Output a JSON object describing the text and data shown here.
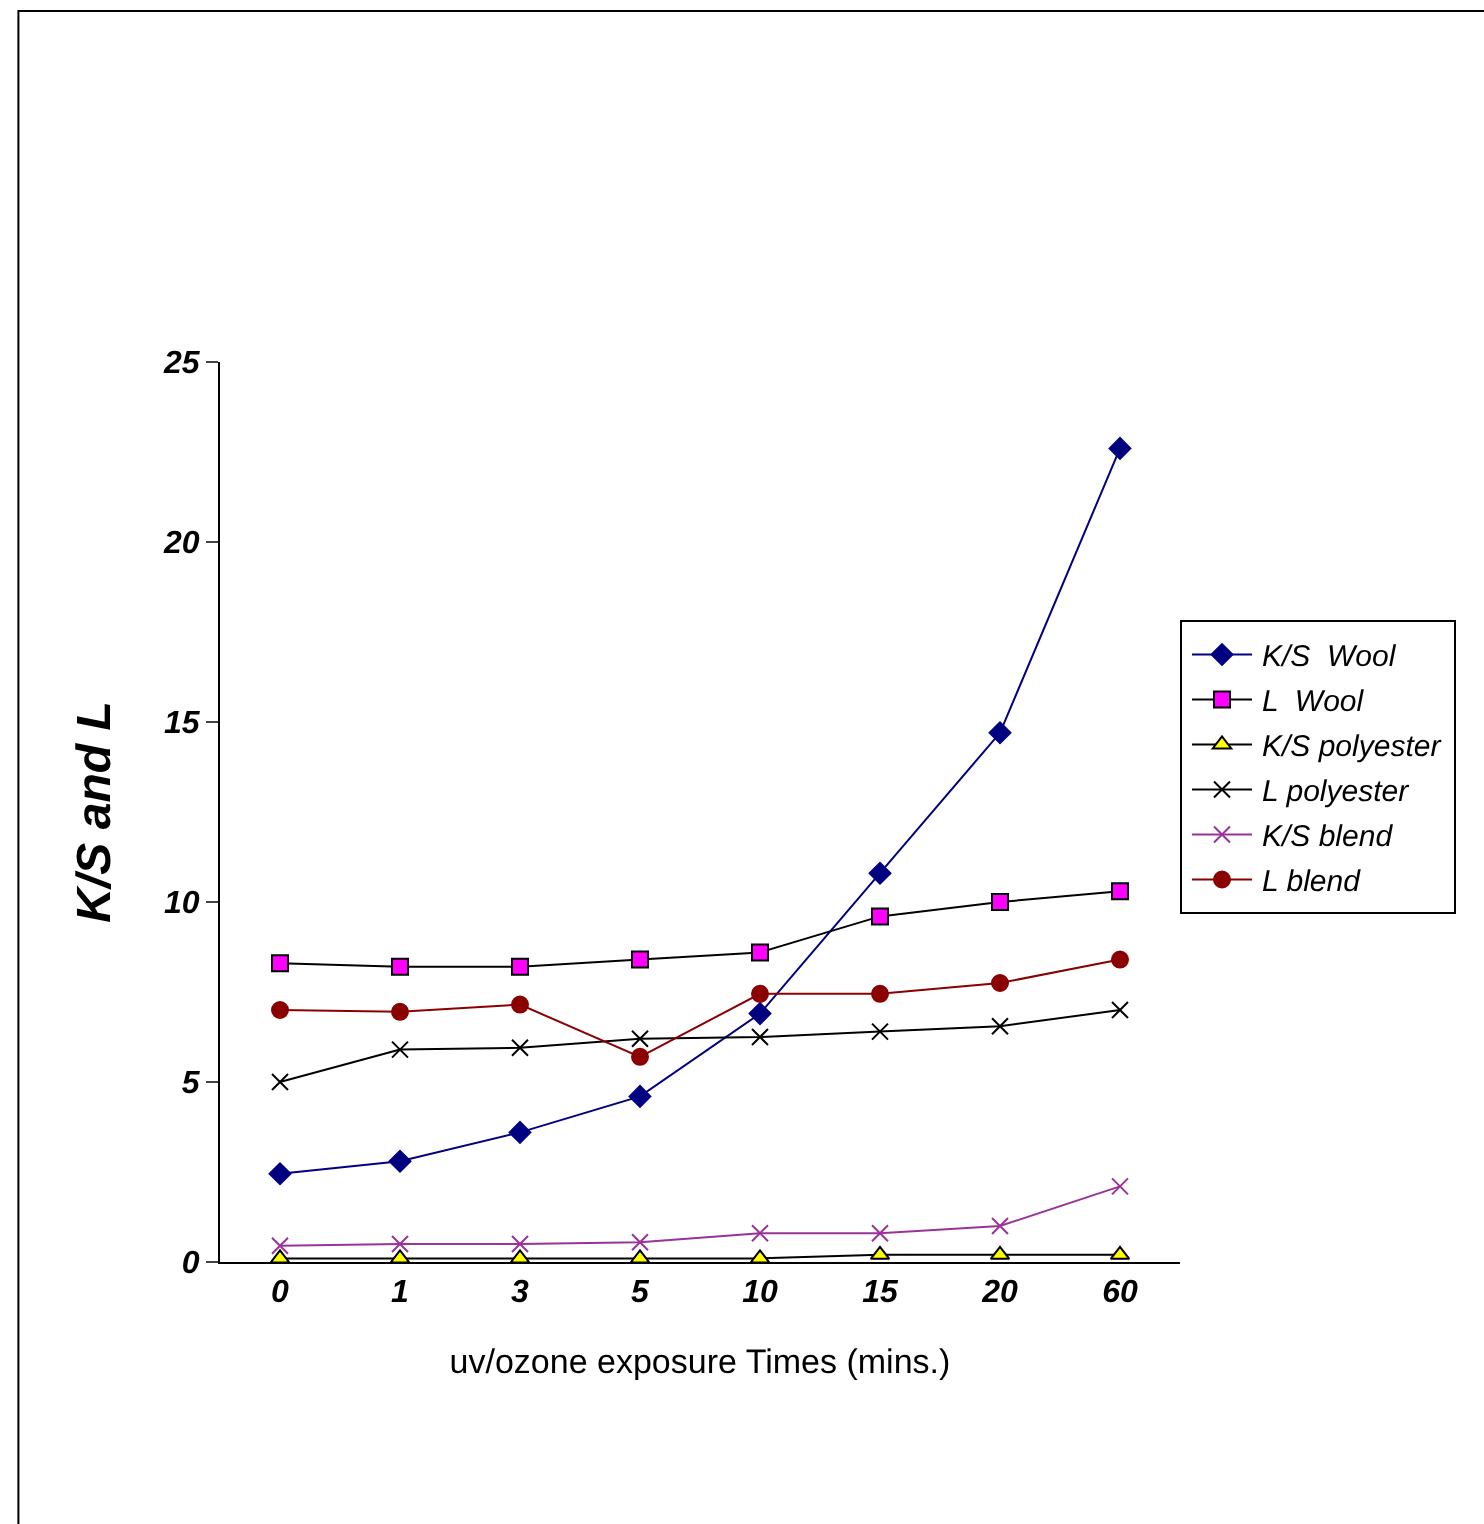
{
  "chart_data": {
    "type": "line",
    "xlabel": "uv/ozone exposure Times (mins.)",
    "ylabel": "K/S and L",
    "categories": [
      "0",
      "1",
      "3",
      "5",
      "10",
      "15",
      "20",
      "60"
    ],
    "series": [
      {
        "name": "K/S  Wool",
        "color": "#000080",
        "marker": "diamond",
        "values": [
          2.45,
          2.8,
          3.6,
          4.6,
          6.9,
          10.8,
          14.7,
          22.6
        ]
      },
      {
        "name": "L  Wool",
        "color": "#000000",
        "marker": "square",
        "values": [
          8.3,
          8.2,
          8.2,
          8.4,
          8.6,
          9.6,
          10.0,
          10.3
        ]
      },
      {
        "name": "K/S polyester",
        "color": "#000000",
        "marker": "triangle",
        "values": [
          0.1,
          0.1,
          0.1,
          0.1,
          0.1,
          0.2,
          0.2,
          0.2
        ]
      },
      {
        "name": "L polyester",
        "color": "#000000",
        "marker": "cross",
        "values": [
          5.0,
          5.9,
          5.95,
          6.2,
          6.25,
          6.4,
          6.55,
          7.0
        ]
      },
      {
        "name": "K/S blend",
        "color": "#993399",
        "marker": "cross",
        "values": [
          0.45,
          0.5,
          0.5,
          0.55,
          0.8,
          0.8,
          1.0,
          2.1
        ]
      },
      {
        "name": "L blend",
        "color": "#8b0000",
        "marker": "circle",
        "values": [
          7.0,
          6.95,
          7.15,
          5.7,
          7.45,
          7.45,
          7.75,
          8.4
        ]
      }
    ],
    "ylim": [
      0,
      25
    ],
    "yticks": [
      0,
      5,
      10,
      15,
      20,
      25
    ],
    "grid": false,
    "legend": "right"
  }
}
